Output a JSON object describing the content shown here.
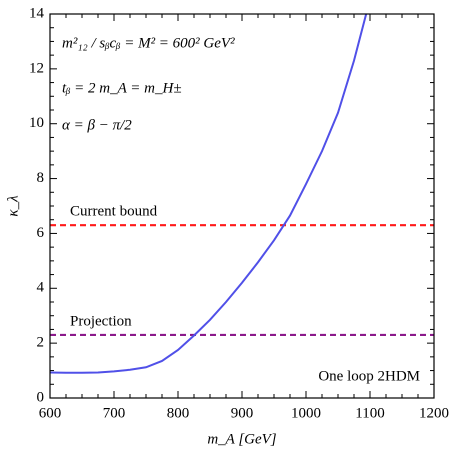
{
  "chart_data": {
    "type": "line",
    "x_label": "m_A [GeV]",
    "y_label": "κ_λ",
    "annotations": [
      "m²₁₂ / sᵦcᵦ = M² = 600² GeV²",
      "tᵦ = 2   m_A = m_H±",
      "α = β − π/2",
      "One loop 2HDM"
    ],
    "x": [
      600,
      625,
      650,
      675,
      700,
      725,
      750,
      775,
      800,
      825,
      850,
      875,
      900,
      925,
      950,
      975,
      1000,
      1025,
      1050,
      1075,
      1094
    ],
    "series": [
      {
        "name": "One loop 2HDM",
        "color": "#5050e8",
        "values": [
          0.93,
          0.92,
          0.92,
          0.93,
          0.97,
          1.03,
          1.12,
          1.35,
          1.75,
          2.28,
          2.85,
          3.5,
          4.2,
          4.95,
          5.75,
          6.65,
          7.8,
          9.0,
          10.4,
          12.3,
          14
        ]
      }
    ],
    "hlines": [
      {
        "label": "Current bound",
        "value": 6.3,
        "color": "#ff1a1a"
      },
      {
        "label": "Projection",
        "value": 2.3,
        "color": "#8b1a8b"
      }
    ],
    "xlim": [
      600,
      1200
    ],
    "ylim": [
      0,
      14
    ],
    "xticks": [
      600,
      700,
      800,
      900,
      1000,
      1100,
      1200
    ],
    "yticks": [
      0,
      2,
      4,
      6,
      8,
      10,
      12,
      14
    ]
  }
}
